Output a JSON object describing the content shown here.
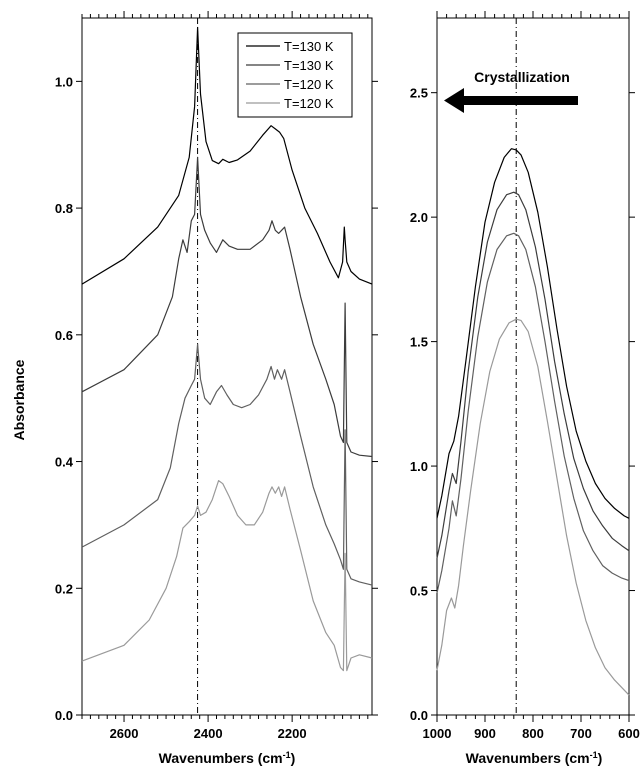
{
  "chart_data": [
    {
      "type": "line",
      "panel": "left",
      "xlabel": "Wavenumbers (cm",
      "xlabel_sup": "-1",
      "xlabel_end": ")",
      "ylabel": "Absorbance",
      "xlim": [
        2700,
        2010
      ],
      "ylim": [
        0.0,
        1.1
      ],
      "x_ticks": [
        2600,
        2400,
        2200
      ],
      "y_ticks": [
        0.0,
        0.2,
        0.4,
        0.6,
        0.8,
        1.0
      ],
      "x_tick_labels": [
        "2600",
        "2400",
        "2200"
      ],
      "y_tick_labels": [
        "0.0",
        "0.2",
        "0.4",
        "0.6",
        "0.8",
        "1.0"
      ],
      "reference_line_x": 2425,
      "legend_position": "top-right",
      "series": [
        {
          "name": "T=130 K",
          "color": "#000000",
          "x": [
            2700,
            2600,
            2520,
            2470,
            2445,
            2432,
            2425,
            2418,
            2405,
            2390,
            2375,
            2365,
            2350,
            2330,
            2300,
            2270,
            2250,
            2240,
            2230,
            2220,
            2200,
            2170,
            2140,
            2110,
            2090,
            2080,
            2076,
            2074,
            2070,
            2060,
            2040,
            2010
          ],
          "y": [
            0.68,
            0.72,
            0.77,
            0.82,
            0.88,
            0.96,
            1.085,
            0.98,
            0.905,
            0.875,
            0.87,
            0.877,
            0.872,
            0.876,
            0.89,
            0.915,
            0.93,
            0.925,
            0.92,
            0.91,
            0.86,
            0.8,
            0.76,
            0.715,
            0.69,
            0.715,
            0.77,
            0.75,
            0.715,
            0.7,
            0.688,
            0.68
          ]
        },
        {
          "name": "T=130 K",
          "color": "#3c3c3c",
          "x": [
            2700,
            2600,
            2520,
            2485,
            2470,
            2460,
            2450,
            2440,
            2432,
            2425,
            2418,
            2408,
            2395,
            2380,
            2365,
            2350,
            2330,
            2300,
            2270,
            2255,
            2248,
            2240,
            2232,
            2225,
            2218,
            2205,
            2180,
            2150,
            2120,
            2100,
            2085,
            2078,
            2074,
            2070,
            2060,
            2040,
            2010
          ],
          "y": [
            0.51,
            0.545,
            0.6,
            0.66,
            0.72,
            0.75,
            0.73,
            0.78,
            0.79,
            0.88,
            0.79,
            0.765,
            0.745,
            0.73,
            0.75,
            0.74,
            0.735,
            0.735,
            0.75,
            0.765,
            0.78,
            0.765,
            0.76,
            0.765,
            0.77,
            0.735,
            0.66,
            0.585,
            0.53,
            0.49,
            0.44,
            0.43,
            0.65,
            0.43,
            0.415,
            0.41,
            0.408
          ]
        },
        {
          "name": "T=120 K",
          "color": "#606060",
          "x": [
            2700,
            2600,
            2520,
            2490,
            2470,
            2455,
            2440,
            2432,
            2425,
            2418,
            2408,
            2395,
            2380,
            2368,
            2355,
            2340,
            2320,
            2300,
            2280,
            2260,
            2250,
            2242,
            2235,
            2225,
            2218,
            2205,
            2180,
            2150,
            2120,
            2100,
            2085,
            2078,
            2074,
            2070,
            2060,
            2040,
            2010
          ],
          "y": [
            0.265,
            0.3,
            0.34,
            0.39,
            0.46,
            0.5,
            0.52,
            0.53,
            0.585,
            0.53,
            0.5,
            0.49,
            0.51,
            0.52,
            0.505,
            0.49,
            0.485,
            0.49,
            0.505,
            0.53,
            0.55,
            0.53,
            0.545,
            0.53,
            0.545,
            0.51,
            0.44,
            0.36,
            0.3,
            0.27,
            0.245,
            0.23,
            0.45,
            0.23,
            0.215,
            0.21,
            0.205
          ]
        },
        {
          "name": "T=120 K",
          "color": "#9a9a9a",
          "x": [
            2700,
            2600,
            2540,
            2500,
            2475,
            2460,
            2445,
            2432,
            2425,
            2418,
            2405,
            2390,
            2375,
            2365,
            2350,
            2330,
            2310,
            2290,
            2270,
            2255,
            2248,
            2240,
            2232,
            2225,
            2218,
            2205,
            2180,
            2150,
            2120,
            2100,
            2085,
            2078,
            2074,
            2070,
            2060,
            2040,
            2010
          ],
          "y": [
            0.085,
            0.11,
            0.15,
            0.2,
            0.25,
            0.295,
            0.305,
            0.315,
            0.33,
            0.315,
            0.32,
            0.34,
            0.37,
            0.365,
            0.345,
            0.315,
            0.3,
            0.3,
            0.32,
            0.35,
            0.36,
            0.35,
            0.36,
            0.345,
            0.36,
            0.325,
            0.26,
            0.18,
            0.13,
            0.11,
            0.075,
            0.07,
            0.255,
            0.07,
            0.09,
            0.095,
            0.09
          ]
        }
      ]
    },
    {
      "type": "line",
      "panel": "right",
      "xlabel": "Wavenumbers (cm",
      "xlabel_sup": "-1",
      "xlabel_end": ")",
      "xlim": [
        1000,
        600
      ],
      "ylim": [
        0.0,
        2.8
      ],
      "x_ticks": [
        1000,
        900,
        800,
        700,
        600
      ],
      "y_ticks": [
        0.0,
        0.5,
        1.0,
        1.5,
        2.0,
        2.5
      ],
      "x_tick_labels": [
        "1000",
        "900",
        "800",
        "700",
        "600"
      ],
      "y_tick_labels": [
        "0.0",
        "0.5",
        "1.0",
        "1.5",
        "2.0",
        "2.5"
      ],
      "reference_line_x": 835,
      "annotation": "Crystallization",
      "series": [
        {
          "color": "#000000",
          "x": [
            1000,
            990,
            975,
            965,
            955,
            940,
            920,
            900,
            880,
            860,
            845,
            835,
            825,
            810,
            790,
            770,
            750,
            730,
            710,
            690,
            670,
            650,
            630,
            610,
            600
          ],
          "y": [
            0.79,
            0.88,
            1.05,
            1.1,
            1.2,
            1.42,
            1.72,
            1.98,
            2.14,
            2.24,
            2.275,
            2.27,
            2.25,
            2.18,
            2.02,
            1.8,
            1.55,
            1.32,
            1.14,
            1.02,
            0.93,
            0.87,
            0.83,
            0.8,
            0.79
          ]
        },
        {
          "color": "#3c3c3c",
          "x": [
            1000,
            990,
            975,
            968,
            960,
            950,
            935,
            915,
            895,
            875,
            855,
            840,
            830,
            815,
            795,
            775,
            755,
            735,
            715,
            695,
            675,
            655,
            635,
            615,
            600
          ],
          "y": [
            0.63,
            0.72,
            0.9,
            0.97,
            0.93,
            1.1,
            1.38,
            1.68,
            1.9,
            2.03,
            2.09,
            2.1,
            2.09,
            2.03,
            1.88,
            1.67,
            1.42,
            1.21,
            1.03,
            0.91,
            0.82,
            0.76,
            0.71,
            0.68,
            0.66
          ]
        },
        {
          "color": "#606060",
          "x": [
            1000,
            990,
            975,
            968,
            960,
            950,
            935,
            915,
            895,
            875,
            855,
            840,
            830,
            815,
            795,
            775,
            755,
            735,
            715,
            695,
            675,
            655,
            635,
            615,
            600
          ],
          "y": [
            0.49,
            0.58,
            0.75,
            0.86,
            0.8,
            0.95,
            1.22,
            1.52,
            1.74,
            1.87,
            1.925,
            1.935,
            1.925,
            1.87,
            1.72,
            1.5,
            1.26,
            1.04,
            0.87,
            0.74,
            0.66,
            0.6,
            0.57,
            0.55,
            0.54
          ]
        },
        {
          "color": "#9a9a9a",
          "x": [
            1000,
            990,
            980,
            970,
            963,
            955,
            945,
            930,
            910,
            890,
            870,
            850,
            835,
            825,
            810,
            790,
            770,
            750,
            730,
            710,
            690,
            670,
            650,
            630,
            610,
            600
          ],
          "y": [
            0.18,
            0.28,
            0.42,
            0.47,
            0.43,
            0.52,
            0.68,
            0.9,
            1.17,
            1.38,
            1.51,
            1.575,
            1.59,
            1.585,
            1.54,
            1.4,
            1.18,
            0.95,
            0.72,
            0.53,
            0.38,
            0.27,
            0.19,
            0.14,
            0.1,
            0.08
          ]
        }
      ]
    }
  ]
}
